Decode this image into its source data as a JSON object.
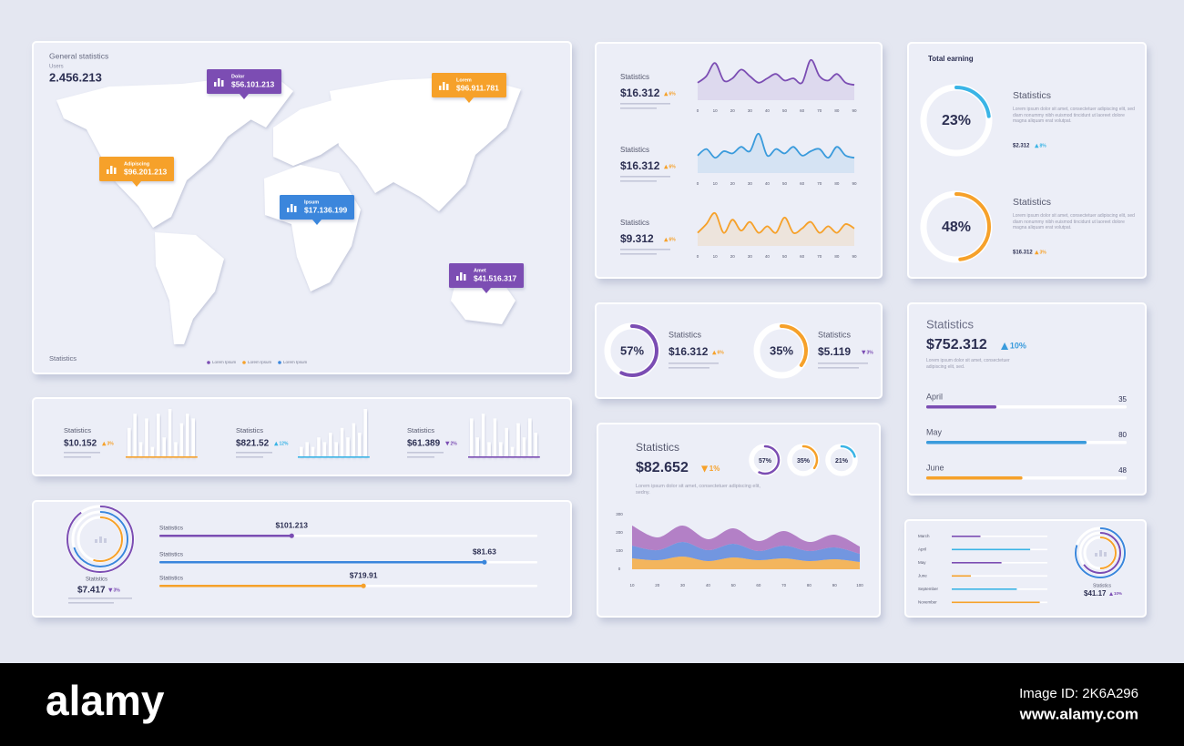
{
  "world_map": {
    "title": "General statistics",
    "users_label": "Users",
    "users": "2.456.213",
    "pins": [
      {
        "name": "Dolor",
        "value": "$56.101.213",
        "color": "#7b4db3"
      },
      {
        "name": "Lorem",
        "value": "$96.911.781",
        "color": "#f6a12a"
      },
      {
        "name": "Adipiscing",
        "value": "$96.201.213",
        "color": "#f6a12a"
      },
      {
        "name": "Ipsum",
        "value": "$17.136.199",
        "color": "#3a86dc"
      },
      {
        "name": "Amet",
        "value": "$41.516.317",
        "color": "#7b4db3"
      }
    ],
    "footer": "Statistics",
    "legend": [
      {
        "name": "Lorem Ipsum",
        "color": "#7b4db3"
      },
      {
        "name": "Lorem Ipsum",
        "color": "#f6a12a"
      },
      {
        "name": "Lorem Ipsum",
        "color": "#3a86dc"
      }
    ]
  },
  "line_stats": [
    {
      "label": "Statistics",
      "value": "$16.312",
      "change": "6%",
      "trend": "up",
      "color": "#f6a12a",
      "chart": {
        "type": "line",
        "color": "#7b4db3",
        "xlim": [
          0,
          90
        ],
        "ylim": [
          0,
          100
        ],
        "x": [
          0,
          5,
          10,
          15,
          20,
          25,
          30,
          35,
          40,
          45,
          50,
          55,
          60,
          65,
          70,
          75,
          80,
          85,
          90
        ],
        "values": [
          40,
          55,
          85,
          45,
          50,
          70,
          55,
          40,
          50,
          60,
          45,
          50,
          40,
          92,
          55,
          45,
          60,
          40,
          35
        ],
        "xticks": [
          0,
          10,
          20,
          30,
          40,
          50,
          60,
          70,
          80,
          90
        ]
      }
    },
    {
      "label": "Statistics",
      "value": "$16.312",
      "change": "6%",
      "trend": "up",
      "color": "#f6a12a",
      "chart": {
        "type": "line",
        "color": "#3a9bdc",
        "xlim": [
          0,
          90
        ],
        "ylim": [
          0,
          100
        ],
        "x": [
          0,
          5,
          10,
          15,
          20,
          25,
          30,
          35,
          40,
          45,
          50,
          55,
          60,
          65,
          70,
          75,
          80,
          85,
          90
        ],
        "values": [
          40,
          55,
          35,
          50,
          45,
          60,
          50,
          90,
          40,
          55,
          45,
          60,
          40,
          50,
          55,
          35,
          60,
          40,
          35
        ],
        "xticks": [
          0,
          10,
          20,
          30,
          40,
          50,
          60,
          70,
          80,
          90
        ]
      }
    },
    {
      "label": "Statistics",
      "value": "$9.312",
      "change": "6%",
      "trend": "up",
      "color": "#f6a12a",
      "chart": {
        "type": "line",
        "color": "#f6a12a",
        "xlim": [
          0,
          90
        ],
        "ylim": [
          0,
          100
        ],
        "x": [
          0,
          5,
          10,
          15,
          20,
          25,
          30,
          35,
          40,
          45,
          50,
          55,
          60,
          65,
          70,
          75,
          80,
          85,
          90
        ],
        "values": [
          30,
          50,
          75,
          30,
          60,
          35,
          55,
          30,
          45,
          30,
          65,
          30,
          40,
          55,
          30,
          45,
          30,
          50,
          40
        ],
        "xticks": [
          0,
          10,
          20,
          30,
          40,
          50,
          60,
          70,
          80,
          90
        ]
      }
    }
  ],
  "total_earning": {
    "title": "Total earning",
    "items": [
      {
        "ring": {
          "value": 23,
          "label": "23%"
        },
        "color": "#3ab4e6",
        "label": "Statistics",
        "text": "Lorem ipsum dolor sit amet, consectetuer adipiscing elit, sed diam nonummy nibh euismod tincidunt ut laoreet dolore magna aliquam erat volutpat.",
        "value": "$2.312",
        "change": "8%",
        "trend": "up"
      },
      {
        "ring": {
          "value": 48,
          "label": "48%"
        },
        "color": "#f6a12a",
        "label": "Statistics",
        "text": "Lorem ipsum dolor sit amet, consectetuer adipiscing elit, sed diam nonummy nibh euismod tincidunt ut laoreet dolore magna aliquam erat volutpat.",
        "value": "$16.312",
        "change": "3%",
        "trend": "up"
      }
    ]
  },
  "ring_stats": [
    {
      "ring": {
        "value": 57,
        "label": "57%"
      },
      "color": "#7b4db3",
      "label": "Statistics",
      "value": "$16.312",
      "change": "6%",
      "trend": "up",
      "change_color": "#f6a12a"
    },
    {
      "ring": {
        "value": 35,
        "label": "35%"
      },
      "color": "#f6a12a",
      "label": "Statistics",
      "value": "$5.119",
      "change": "3%",
      "trend": "down",
      "change_color": "#7b4db3"
    }
  ],
  "monthly": {
    "title": "Statistics",
    "value": "$752.312",
    "change": "10%",
    "trend": "up",
    "text": "Lorem ipsum dolor sit amet, consectetuer adipiscing elit, sed.",
    "categories": [
      "April",
      "May",
      "June"
    ],
    "values": [
      35,
      80,
      48
    ],
    "colors": [
      "#7b4db3",
      "#3a9bdc",
      "#f6a12a"
    ],
    "xlim": [
      0,
      100
    ]
  },
  "bar_stats": {
    "ylim": [
      0,
      10
    ],
    "items": [
      {
        "label": "Statistics",
        "value": "$10.152",
        "change": "3%",
        "trend": "up",
        "color": "#f6a12a",
        "values": [
          6,
          9,
          3,
          8,
          2,
          9,
          4,
          10,
          3,
          7,
          9,
          8
        ]
      },
      {
        "label": "Statistics",
        "value": "$821.52",
        "change": "12%",
        "trend": "up",
        "color": "#3ab4e6",
        "values": [
          2,
          3,
          2,
          4,
          3,
          5,
          3,
          6,
          4,
          7,
          5,
          10
        ]
      },
      {
        "label": "Statistics",
        "value": "$61.389",
        "change": "2%",
        "trend": "down",
        "color": "#7b4db3",
        "values": [
          8,
          4,
          9,
          3,
          8,
          3,
          6,
          2,
          7,
          4,
          8,
          5
        ]
      }
    ]
  },
  "progress": {
    "ring": {
      "label": "Statistics",
      "value": "$7.417",
      "change": "3%",
      "trend": "down",
      "rings": [
        90,
        70,
        55
      ],
      "colors": [
        "#7b4db3",
        "#3a86dc",
        "#f6a12a"
      ]
    },
    "xlim": [
      0,
      100
    ],
    "bars": [
      {
        "label": "Statistics",
        "value": "$101.213",
        "progress": 35,
        "color": "#7b4db3"
      },
      {
        "label": "Statistics",
        "value": "$81.63",
        "progress": 86,
        "color": "#3a86dc"
      },
      {
        "label": "Statistics",
        "value": "$719.91",
        "progress": 54,
        "color": "#f6a12a"
      }
    ]
  },
  "stream": {
    "title": "Statistics",
    "value": "$82.652",
    "change": "1%",
    "trend": "down",
    "rings": [
      {
        "value": 57,
        "label": "57%",
        "color": "#7b4db3"
      },
      {
        "value": 35,
        "label": "35%",
        "color": "#f6a12a"
      },
      {
        "value": 21,
        "label": "21%",
        "color": "#3ab4e6"
      }
    ],
    "text": "Lorem ipsum dolor sit amet, consectetuer adipiscing elit, sedny.",
    "chart": {
      "type": "area",
      "stacked": true,
      "xlim": [
        10,
        100
      ],
      "ylim": [
        0,
        300
      ],
      "x": [
        10,
        20,
        30,
        40,
        50,
        60,
        70,
        80,
        90,
        100
      ],
      "xticks": [
        10,
        20,
        30,
        40,
        50,
        60,
        70,
        80,
        90,
        100
      ],
      "yticks": [
        0,
        100,
        200,
        300
      ],
      "series": [
        {
          "color": "#f6a12a",
          "values": [
            60,
            50,
            70,
            45,
            65,
            50,
            60,
            45,
            55,
            40
          ]
        },
        {
          "color": "#4a78d8",
          "values": [
            70,
            55,
            80,
            60,
            75,
            50,
            70,
            55,
            65,
            45
          ]
        },
        {
          "color": "#a05bb5",
          "values": [
            110,
            70,
            90,
            60,
            85,
            55,
            80,
            50,
            70,
            40
          ]
        }
      ]
    }
  },
  "months": {
    "categories": [
      "March",
      "April",
      "May",
      "June",
      "September",
      "November"
    ],
    "values": [
      30,
      82,
      52,
      20,
      68,
      92
    ],
    "colors": [
      "#7b4db3",
      "#3ab4e6",
      "#7b4db3",
      "#f6a12a",
      "#3ab4e6",
      "#f6a12a"
    ],
    "xlim": [
      0,
      100
    ],
    "ring": {
      "label": "Statistics",
      "value": "$41.17",
      "change": "10%",
      "trend": "up",
      "rings": [
        80,
        65,
        50
      ],
      "colors": [
        "#3a86dc",
        "#7b4db3",
        "#f6a12a"
      ]
    }
  },
  "footer": {
    "brand": "alamy",
    "image_id": "Image ID: 2K6A296",
    "url": "www.alamy.com"
  }
}
